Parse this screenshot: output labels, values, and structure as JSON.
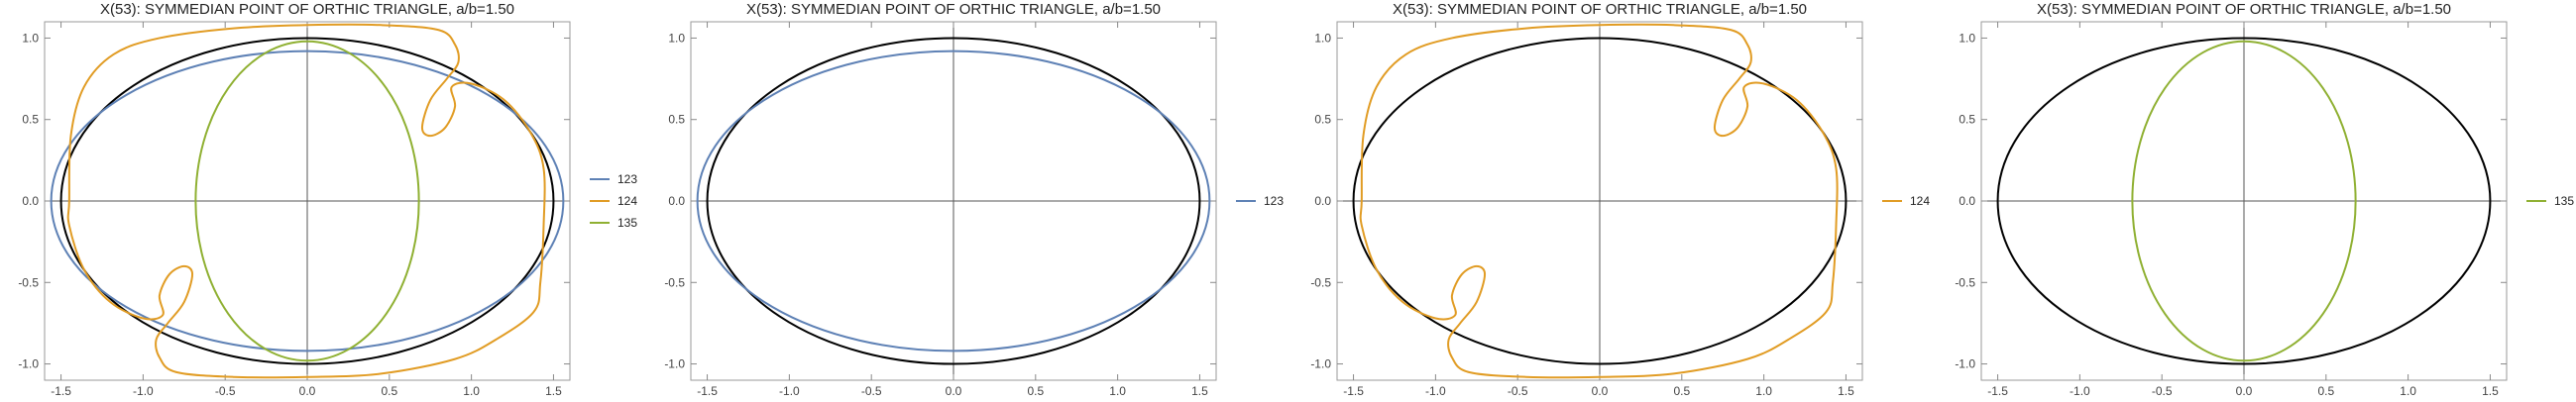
{
  "chart_data": [
    {
      "type": "line",
      "title": "X(53): SYMMEDIAN POINT OF ORTHIC TRIANGLE, a/b=1.50",
      "xlim": [
        -1.6,
        1.6
      ],
      "ylim": [
        -1.1,
        1.1
      ],
      "xticks": [
        -1.5,
        -1.0,
        -0.5,
        0.0,
        0.5,
        1.0,
        1.5
      ],
      "xtick_labels": [
        "-1.5",
        "-1.0",
        "-0.5",
        "0.0",
        "0.5",
        "1.0",
        "1.5"
      ],
      "yticks": [
        -1.0,
        -0.5,
        0.0,
        0.5,
        1.0
      ],
      "ytick_labels": [
        "-1.0",
        "-0.5",
        "0.0",
        "0.5",
        "1.0"
      ],
      "grid": false,
      "legend_position": "right",
      "reference_ellipse": {
        "a": 1.5,
        "b": 1.0,
        "color": "#000000"
      },
      "series": [
        {
          "name": "123",
          "color": "#5e81b5",
          "kind": "ellipse",
          "a": 1.56,
          "b": 0.92
        },
        {
          "name": "124",
          "color": "#e19c24",
          "kind": "loop",
          "curve": "locus124"
        },
        {
          "name": "135",
          "color": "#8fb032",
          "kind": "ellipse",
          "a": 0.68,
          "b": 0.98
        }
      ]
    },
    {
      "type": "line",
      "title": "X(53): SYMMEDIAN POINT OF ORTHIC TRIANGLE, a/b=1.50",
      "xlim": [
        -1.6,
        1.6
      ],
      "ylim": [
        -1.1,
        1.1
      ],
      "xticks": [
        -1.5,
        -1.0,
        -0.5,
        0.0,
        0.5,
        1.0,
        1.5
      ],
      "xtick_labels": [
        "-1.5",
        "-1.0",
        "-0.5",
        "0.0",
        "0.5",
        "1.0",
        "1.5"
      ],
      "yticks": [
        -1.0,
        -0.5,
        0.0,
        0.5,
        1.0
      ],
      "ytick_labels": [
        "-1.0",
        "-0.5",
        "0.0",
        "0.5",
        "1.0"
      ],
      "grid": false,
      "legend_position": "right",
      "reference_ellipse": {
        "a": 1.5,
        "b": 1.0,
        "color": "#000000"
      },
      "series": [
        {
          "name": "123",
          "color": "#5e81b5",
          "kind": "ellipse",
          "a": 1.56,
          "b": 0.92
        }
      ]
    },
    {
      "type": "line",
      "title": "X(53): SYMMEDIAN POINT OF ORTHIC TRIANGLE, a/b=1.50",
      "xlim": [
        -1.6,
        1.6
      ],
      "ylim": [
        -1.1,
        1.1
      ],
      "xticks": [
        -1.5,
        -1.0,
        -0.5,
        0.0,
        0.5,
        1.0,
        1.5
      ],
      "xtick_labels": [
        "-1.5",
        "-1.0",
        "-0.5",
        "0.0",
        "0.5",
        "1.0",
        "1.5"
      ],
      "yticks": [
        -1.0,
        -0.5,
        0.0,
        0.5,
        1.0
      ],
      "ytick_labels": [
        "-1.0",
        "-0.5",
        "0.0",
        "0.5",
        "1.0"
      ],
      "grid": false,
      "legend_position": "right",
      "reference_ellipse": {
        "a": 1.5,
        "b": 1.0,
        "color": "#000000"
      },
      "series": [
        {
          "name": "124",
          "color": "#e19c24",
          "kind": "loop",
          "curve": "locus124"
        }
      ]
    },
    {
      "type": "line",
      "title": "X(53): SYMMEDIAN POINT OF ORTHIC TRIANGLE, a/b=1.50",
      "xlim": [
        -1.6,
        1.6
      ],
      "ylim": [
        -1.1,
        1.1
      ],
      "xticks": [
        -1.5,
        -1.0,
        -0.5,
        0.0,
        0.5,
        1.0,
        1.5
      ],
      "xtick_labels": [
        "-1.5",
        "-1.0",
        "-0.5",
        "0.0",
        "0.5",
        "1.0",
        "1.5"
      ],
      "yticks": [
        -1.0,
        -0.5,
        0.0,
        0.5,
        1.0
      ],
      "ytick_labels": [
        "-1.0",
        "-0.5",
        "0.0",
        "0.5",
        "1.0"
      ],
      "grid": false,
      "legend_position": "right",
      "reference_ellipse": {
        "a": 1.5,
        "b": 1.0,
        "color": "#000000"
      },
      "series": [
        {
          "name": "135",
          "color": "#8fb032",
          "kind": "ellipse",
          "a": 0.68,
          "b": 0.98
        }
      ]
    }
  ],
  "curves": {
    "locus124": [
      [
        -1.45,
        0.0
      ],
      [
        -1.44,
        0.4
      ],
      [
        -1.36,
        0.7
      ],
      [
        -1.18,
        0.9
      ],
      [
        -0.9,
        1.0
      ],
      [
        -0.45,
        1.06
      ],
      [
        0.0,
        1.08
      ],
      [
        0.45,
        1.08
      ],
      [
        0.8,
        1.05
      ],
      [
        0.9,
        0.96
      ],
      [
        0.92,
        0.85
      ],
      [
        0.85,
        0.75
      ],
      [
        0.75,
        0.62
      ],
      [
        0.7,
        0.45
      ],
      [
        0.75,
        0.4
      ],
      [
        0.84,
        0.45
      ],
      [
        0.9,
        0.58
      ],
      [
        0.88,
        0.7
      ],
      [
        1.0,
        0.72
      ],
      [
        1.2,
        0.62
      ],
      [
        1.36,
        0.42
      ],
      [
        1.44,
        0.2
      ],
      [
        1.44,
        -0.15
      ],
      [
        1.42,
        -0.5
      ],
      [
        1.38,
        -0.68
      ],
      [
        1.15,
        -0.85
      ],
      [
        0.9,
        -0.97
      ],
      [
        0.45,
        -1.06
      ],
      [
        0.0,
        -1.08
      ],
      [
        -0.45,
        -1.08
      ],
      [
        -0.8,
        -1.05
      ],
      [
        -0.9,
        -0.96
      ],
      [
        -0.92,
        -0.85
      ],
      [
        -0.85,
        -0.75
      ],
      [
        -0.75,
        -0.62
      ],
      [
        -0.7,
        -0.45
      ],
      [
        -0.75,
        -0.4
      ],
      [
        -0.84,
        -0.45
      ],
      [
        -0.9,
        -0.58
      ],
      [
        -0.88,
        -0.7
      ],
      [
        -1.0,
        -0.72
      ],
      [
        -1.2,
        -0.62
      ],
      [
        -1.36,
        -0.42
      ],
      [
        -1.45,
        -0.15
      ],
      [
        -1.45,
        0.0
      ]
    ]
  }
}
